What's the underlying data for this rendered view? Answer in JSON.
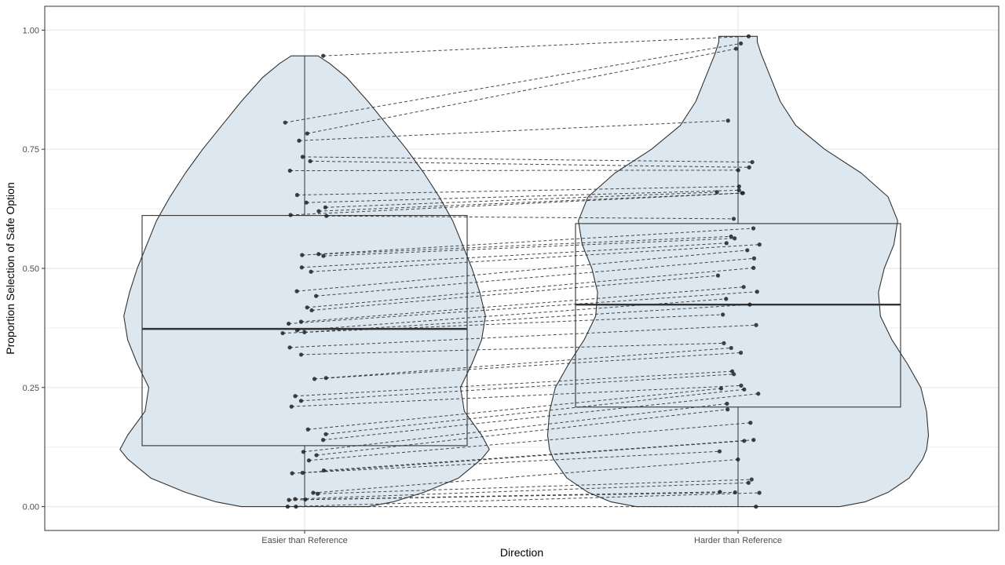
{
  "chart_data": {
    "type": "violin+boxplot+paired-points",
    "title": "",
    "xlabel": "Direction",
    "ylabel": "Proportion Selection of Safe Option",
    "categories": [
      "Easier than Reference",
      "Harder than Reference"
    ],
    "ylim": [
      -0.05,
      1.05
    ],
    "yticks": [
      0.0,
      0.25,
      0.5,
      0.75,
      1.0
    ],
    "ytick_labels": [
      "0.00",
      "0.25",
      "0.50",
      "0.75",
      "1.00"
    ],
    "grid": true,
    "colors": {
      "violin_fill": "#dce7f0",
      "outline": "#333333",
      "point": "#222222",
      "pair_line": "#333333",
      "grid": "#ebebeb",
      "panel_border": "#333333"
    },
    "boxplots": [
      {
        "category": "Easier than Reference",
        "q1": 0.128,
        "median": 0.373,
        "q3": 0.611,
        "whisker_low": 0.0,
        "whisker_high": 0.946
      },
      {
        "category": "Harder than Reference",
        "q1": 0.209,
        "median": 0.424,
        "q3": 0.594,
        "whisker_low": 0.0,
        "whisker_high": 0.987
      }
    ],
    "violins": [
      {
        "category": "Easier than Reference",
        "y": [
          0.0,
          0.01,
          0.03,
          0.06,
          0.1,
          0.12,
          0.15,
          0.2,
          0.25,
          0.3,
          0.35,
          0.4,
          0.45,
          0.5,
          0.55,
          0.6,
          0.65,
          0.7,
          0.75,
          0.8,
          0.85,
          0.9,
          0.93,
          0.946
        ],
        "width": [
          0.33,
          0.46,
          0.62,
          0.8,
          0.92,
          0.96,
          0.92,
          0.83,
          0.81,
          0.87,
          0.92,
          0.94,
          0.91,
          0.87,
          0.82,
          0.77,
          0.7,
          0.62,
          0.53,
          0.43,
          0.33,
          0.22,
          0.13,
          0.07
        ]
      },
      {
        "category": "Harder than Reference",
        "y": [
          0.0,
          0.01,
          0.03,
          0.06,
          0.1,
          0.12,
          0.15,
          0.2,
          0.25,
          0.3,
          0.35,
          0.4,
          0.45,
          0.5,
          0.55,
          0.6,
          0.65,
          0.7,
          0.75,
          0.8,
          0.85,
          0.9,
          0.95,
          0.975,
          0.987
        ],
        "width": [
          0.53,
          0.66,
          0.78,
          0.89,
          0.96,
          0.98,
          0.99,
          0.98,
          0.95,
          0.88,
          0.8,
          0.74,
          0.73,
          0.76,
          0.81,
          0.83,
          0.78,
          0.64,
          0.45,
          0.3,
          0.22,
          0.17,
          0.12,
          0.1,
          0.1
        ]
      }
    ],
    "pairs": [
      [
        0.946,
        0.987
      ],
      [
        0.806,
        0.972
      ],
      [
        0.783,
        0.961
      ],
      [
        0.768,
        0.81
      ],
      [
        0.734,
        0.723
      ],
      [
        0.725,
        0.712
      ],
      [
        0.705,
        0.706
      ],
      [
        0.654,
        0.672
      ],
      [
        0.638,
        0.664
      ],
      [
        0.628,
        0.66
      ],
      [
        0.62,
        0.658
      ],
      [
        0.612,
        0.658
      ],
      [
        0.61,
        0.604
      ],
      [
        0.53,
        0.584
      ],
      [
        0.528,
        0.567
      ],
      [
        0.526,
        0.563
      ],
      [
        0.502,
        0.553
      ],
      [
        0.493,
        0.55
      ],
      [
        0.452,
        0.538
      ],
      [
        0.442,
        0.521
      ],
      [
        0.418,
        0.501
      ],
      [
        0.412,
        0.485
      ],
      [
        0.388,
        0.461
      ],
      [
        0.384,
        0.451
      ],
      [
        0.37,
        0.436
      ],
      [
        0.366,
        0.424
      ],
      [
        0.364,
        0.403
      ],
      [
        0.334,
        0.381
      ],
      [
        0.319,
        0.343
      ],
      [
        0.27,
        0.333
      ],
      [
        0.268,
        0.323
      ],
      [
        0.232,
        0.284
      ],
      [
        0.222,
        0.278
      ],
      [
        0.21,
        0.254
      ],
      [
        0.162,
        0.248
      ],
      [
        0.152,
        0.246
      ],
      [
        0.14,
        0.237
      ],
      [
        0.115,
        0.216
      ],
      [
        0.108,
        0.204
      ],
      [
        0.097,
        0.176
      ],
      [
        0.076,
        0.14
      ],
      [
        0.071,
        0.138
      ],
      [
        0.07,
        0.116
      ],
      [
        0.029,
        0.099
      ],
      [
        0.027,
        0.057
      ],
      [
        0.016,
        0.05
      ],
      [
        0.015,
        0.031
      ],
      [
        0.014,
        0.03
      ],
      [
        0.0,
        0.029
      ],
      [
        0.0,
        0.0
      ]
    ]
  }
}
